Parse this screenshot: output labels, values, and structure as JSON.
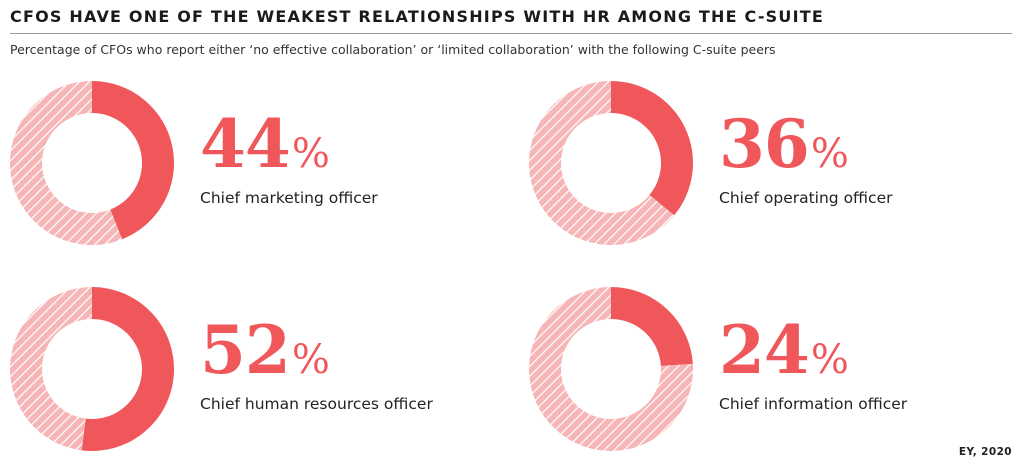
{
  "colors": {
    "accent": "#f0575b",
    "remainder": "#f6b6b7",
    "hatch": "#ffffff"
  },
  "chart_data": {
    "type": "pie",
    "title": "CFOS HAVE ONE OF THE WEAKEST RELATIONSHIPS WITH HR AMONG THE C-SUITE",
    "subtitle": "Percentage of CFOs who report either ‘no effective collaboration’ or ‘limited collaboration’ with the following C-suite peers",
    "unit": "%",
    "categories": [
      "Chief marketing officer",
      "Chief operating officer",
      "Chief human resources officer",
      "Chief information officer"
    ],
    "values": [
      44,
      36,
      52,
      24
    ],
    "source": "EY, 2020"
  }
}
